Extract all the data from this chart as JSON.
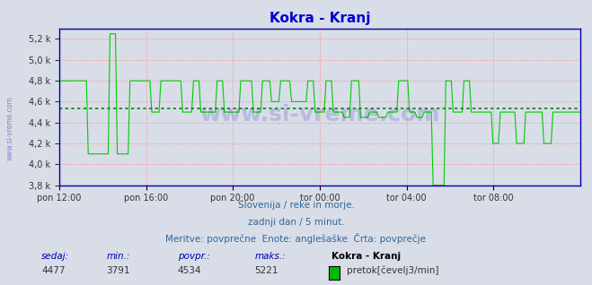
{
  "title": "Kokra - Kranj",
  "title_color": "#0000cc",
  "bg_color": "#d8dde8",
  "plot_bg_color": "#d8dde8",
  "line_color": "#00cc00",
  "avg_line_color": "#008800",
  "avg_line_style": "dotted",
  "avg_value": 4534,
  "y_min": 3800,
  "y_max": 5300,
  "y_ticks": [
    3800,
    4000,
    4200,
    4400,
    4600,
    4800,
    5000,
    5200
  ],
  "x_tick_labels": [
    "pon 12:00",
    "pon 16:00",
    "pon 20:00",
    "tor 00:00",
    "tor 04:00",
    "tor 08:00"
  ],
  "x_tick_positions": [
    0.0,
    0.1667,
    0.3333,
    0.5,
    0.6667,
    0.8333
  ],
  "grid_color_major": "#ff9999",
  "grid_color_minor": "#ff9999",
  "watermark": "www.si-vreme.com",
  "subtitle1": "Slovenija / reke in morje.",
  "subtitle2": "zadnji dan / 5 minut.",
  "subtitle3": "Meritve: povprečne  Enote: anglešaške  Črta: povprečje",
  "footer_label_color": "#0000aa",
  "legend_color": "#00bb00",
  "sedaj": 4477,
  "min_val": 3791,
  "povpr": 4534,
  "maks": 5221,
  "series_name": "Kokra - Kranj",
  "unit": "pretok[čevelj3/min]",
  "n_points": 288
}
